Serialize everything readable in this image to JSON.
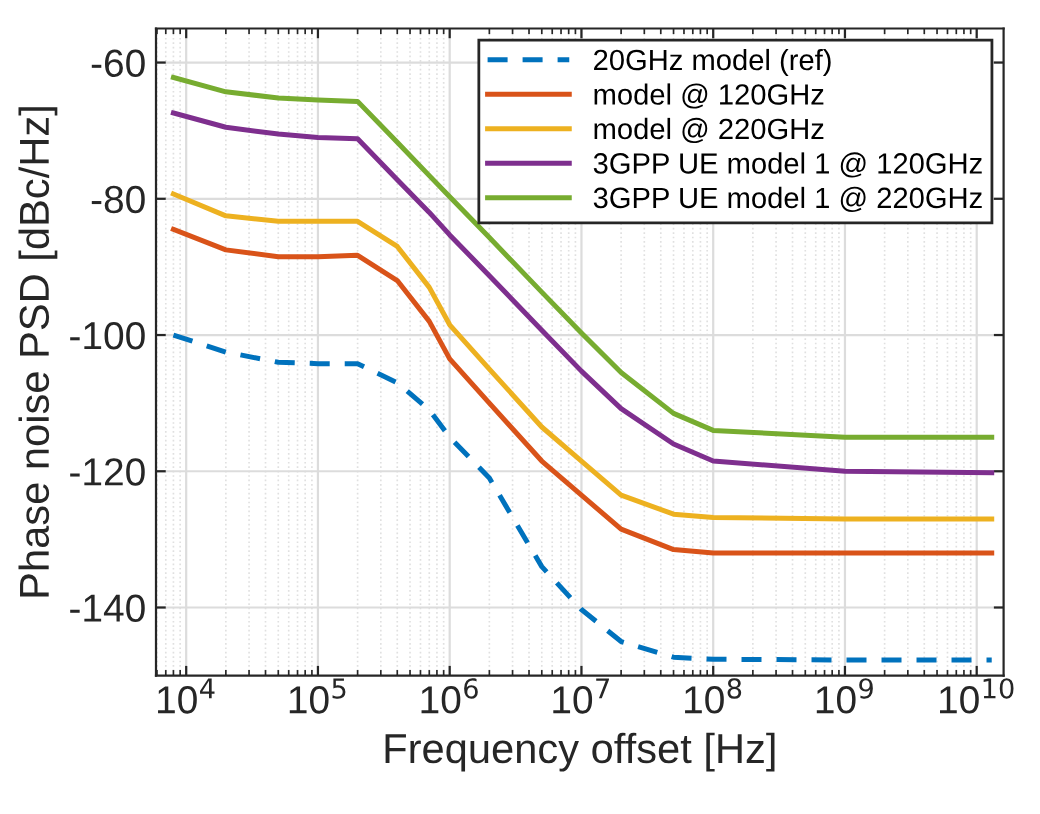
{
  "chart_data": {
    "type": "line",
    "xlabel": "Frequency offset [Hz]",
    "ylabel": "Phase noise PSD [dBc/Hz]",
    "log": "x",
    "grid": true,
    "legend": "top right",
    "xlim": [
      5900,
      16000000000
    ],
    "ylim": [
      -150,
      -55
    ],
    "xticks": [
      {
        "value": 10000,
        "label": "10$^{4}$"
      },
      {
        "value": 100000,
        "label": "10$^{5}$"
      },
      {
        "value": 1000000,
        "label": "10$^{6}$"
      },
      {
        "value": 10000000,
        "label": "10$^{7}$"
      },
      {
        "value": 100000000,
        "label": "10$^{8}$"
      },
      {
        "value": 1000000000,
        "label": "10$^{9}$"
      },
      {
        "value": 10000000000,
        "label": "10$^{10}$"
      }
    ],
    "yticks": [
      -140,
      -120,
      -100,
      -80,
      -60
    ],
    "x": [
      8000,
      20000,
      50000,
      100000,
      200000,
      400000,
      700000,
      1000000,
      2000000,
      5000000,
      10000000,
      20000000,
      50000000,
      100000000,
      1000000000,
      13000000000
    ],
    "series": [
      {
        "name": "20GHz model (ref)",
        "color": "#0072bd",
        "line_style": "dashed",
        "values": [
          -100,
          -102.5,
          -104,
          -104.2,
          -104.2,
          -107,
          -111,
          -115,
          -121,
          -134,
          -140.3,
          -145,
          -147.3,
          -147.6,
          -147.7,
          -147.7
        ]
      },
      {
        "name": "model @ 120GHz",
        "color": "#d95319",
        "line_style": "solid",
        "values": [
          -84.5,
          -87.5,
          -88.5,
          -88.5,
          -88.3,
          -92,
          -98,
          -103.5,
          -110,
          -118.5,
          -123.5,
          -128.5,
          -131.5,
          -132,
          -132,
          -132
        ]
      },
      {
        "name": "model @ 220GHz",
        "color": "#edb120",
        "line_style": "solid",
        "values": [
          -79.3,
          -82.5,
          -83.3,
          -83.3,
          -83.3,
          -87,
          -93,
          -98.5,
          -105,
          -113.5,
          -118.5,
          -123.5,
          -126.3,
          -126.8,
          -127,
          -127
        ]
      },
      {
        "name": "3GPP UE model 1 @ 120GHz",
        "color": "#7e2f8e",
        "line_style": "solid",
        "values": [
          -67.4,
          -69.5,
          -70.5,
          -71,
          -71.2,
          -77.2,
          -82,
          -85.3,
          -91.3,
          -99.3,
          -105.3,
          -110.8,
          -116,
          -118.5,
          -120,
          -120.2
        ]
      },
      {
        "name": "3GPP UE model 1 @ 220GHz",
        "color": "#77ac30",
        "line_style": "solid",
        "values": [
          -62.2,
          -64.3,
          -65.2,
          -65.5,
          -65.7,
          -71.7,
          -76.6,
          -79.7,
          -85.7,
          -93.7,
          -99.7,
          -105.5,
          -111.5,
          -114,
          -115,
          -115
        ]
      }
    ]
  }
}
